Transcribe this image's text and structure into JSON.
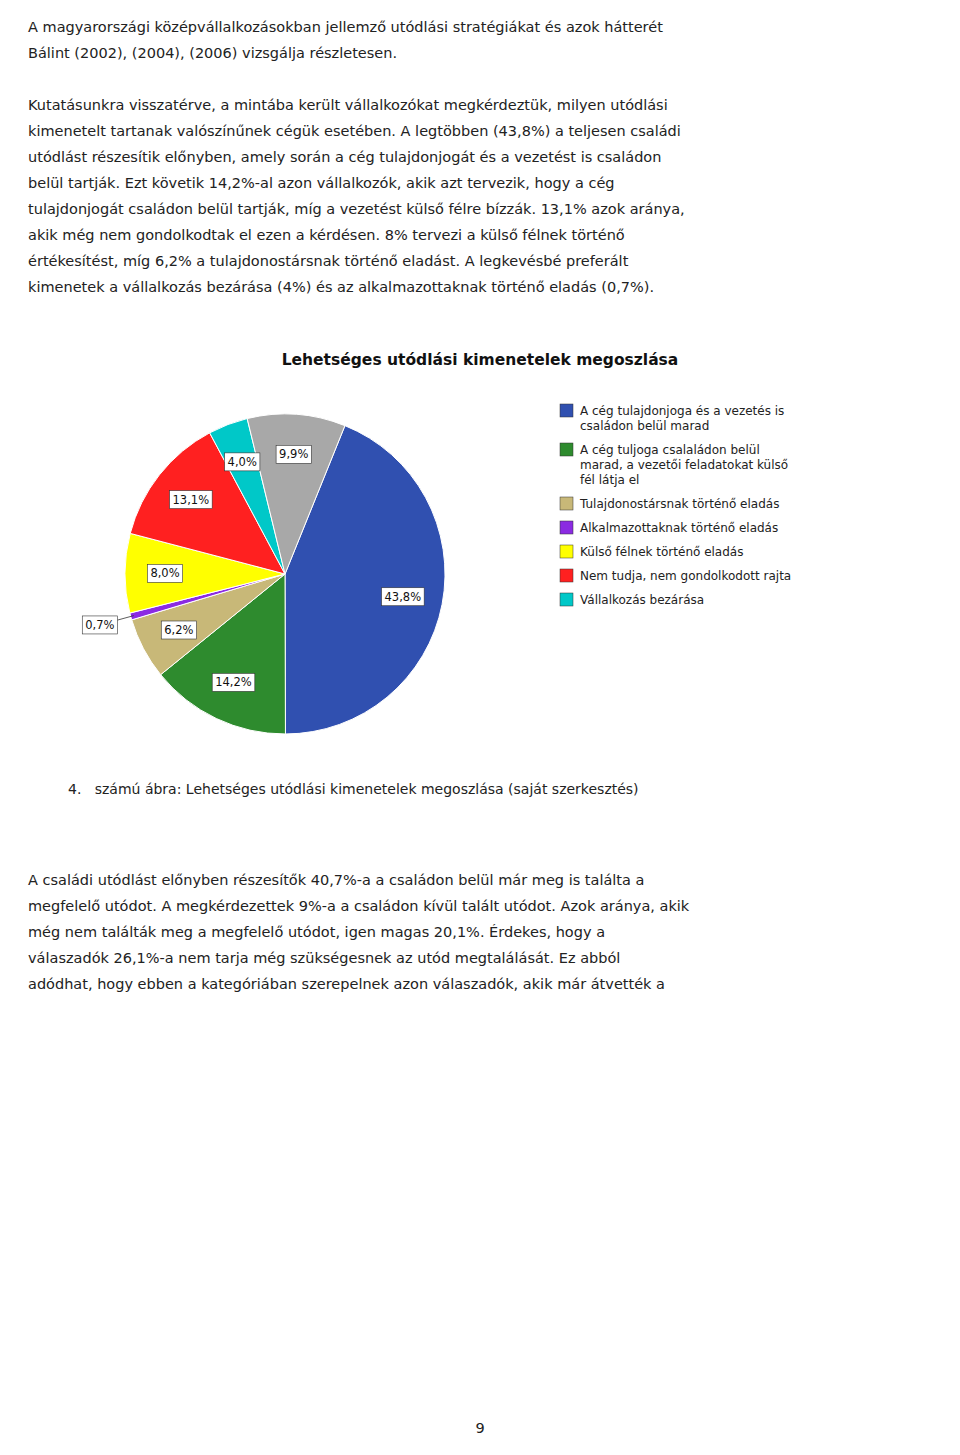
{
  "paragraphs_before": [
    [
      "A magyarországi középvállalkozásokban jellemző utódlási stratégiákat és azok hátterét",
      "Bálint (2002), (2004), (2006) vizsgálja részletesen."
    ],
    [
      "Kutatásunkra visszatérve, a mintába került vállalkozókat megkérdeztük, milyen utódlási",
      "kimenetelt tartanak valószínűnek cégük esetében. A legtöbben (43,8%) a teljesen családi",
      "utódlást részesítik előnyben, amely során a cég tulajdonjogát és a vezetést is családon",
      "belül tartják. Ezt követik 14,2%-al azon vállalkozók, akik azt tervezik, hogy a cég",
      "tulajdonjogát családon belül tartják, míg a vezetést külső félre bízzák. 13,1% azok aránya,",
      "akik még nem gondolkodtak el ezen a kérdésen. 8% tervezi a külső félnek történő",
      "értékesítést, míg 6,2% a tulajdonostársnak történő eladást. A legkevésbé preferált",
      "kimenetek a vállalkozás bezárása (4%) és az alkalmazottaknak történő eladás (0,7%)."
    ]
  ],
  "chart_data": {
    "type": "pie",
    "title": "Lehetséges utódlási kimenetelek megoszlása",
    "categories": [
      "A cég tulajdonjoga és a vezetés is\ncsaládon belül marad",
      "A cég tuljoga csalaládon belül\nmarad, a vezetői feladatokat külső\nfél látja el",
      "Tulajdonostársnak történő eladás",
      "Alkalmazottaknak történő eladás",
      "Külső félnek történő eladás",
      "Nem tudja, nem gondolkodott rajta",
      "Vállalkozás bezárása",
      null
    ],
    "values": [
      43.8,
      14.2,
      6.2,
      0.7,
      8.0,
      13.1,
      4.0,
      9.9
    ],
    "value_labels": [
      "43,8%",
      "14,2%",
      "6,2%",
      "0,7%",
      "8,0%",
      "13,1%",
      "4,0%",
      "9,9%"
    ],
    "colors": [
      "#3050B0",
      "#2E8B2E",
      "#C8B878",
      "#8B2BE2",
      "#FFFF00",
      "#FF2020",
      "#00C8C8",
      "#A8A8A8"
    ],
    "data_labels": true,
    "legend": "right"
  },
  "caption": "4.   számú ábra: Lehetséges utódlási kimenetelek megoszlása (saját szerkesztés)",
  "paragraphs_after": [
    [
      "A családi utódlást előnyben részesítők 40,7%-a a családon belül már meg is találta a",
      "megfelelő utódot. A megkérdezettek 9%-a a családon kívül talált utódot. Azok aránya, akik",
      "még nem találták meg a megfelelő utódot, igen magas 20,1%. Érdekes, hogy a",
      "válaszadók 26,1%-a nem tarja még szükségesnek az utód megtalálását. Ez abból",
      "adódhat, hogy ebben a kategóriában szerepelnek azon válaszadók, akik már átvették a"
    ]
  ],
  "page_number": "9"
}
